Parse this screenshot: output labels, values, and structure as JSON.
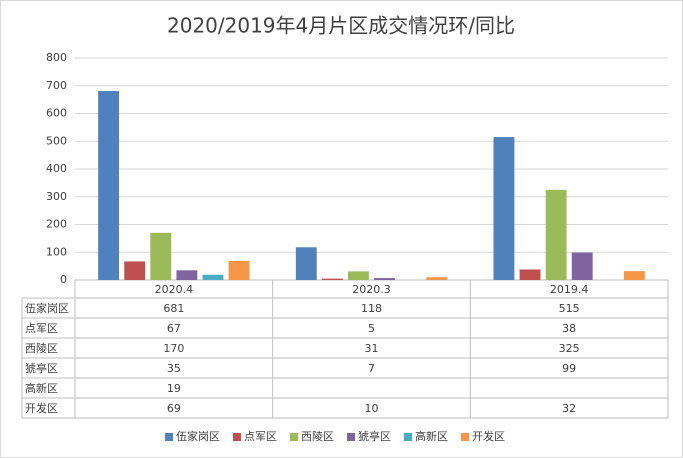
{
  "chart_data": {
    "type": "bar",
    "title": "2020/2019年4月片区成交情况环/同比",
    "categories": [
      "2020.4",
      "2020.3",
      "2019.4"
    ],
    "series": [
      {
        "name": "伍家岗区",
        "color": "#4f81bd",
        "values": [
          681,
          118,
          515
        ]
      },
      {
        "name": "点军区",
        "color": "#c0504d",
        "values": [
          67,
          5,
          38
        ]
      },
      {
        "name": "西陵区",
        "color": "#9bbb59",
        "values": [
          170,
          31,
          325
        ]
      },
      {
        "name": "猇亭区",
        "color": "#8064a2",
        "values": [
          35,
          7,
          99
        ]
      },
      {
        "name": "高新区",
        "color": "#4bacc6",
        "values": [
          19,
          null,
          null
        ]
      },
      {
        "name": "开发区",
        "color": "#f79646",
        "values": [
          69,
          10,
          32
        ]
      }
    ],
    "ylim": [
      0,
      800
    ],
    "yticks": [
      0,
      100,
      200,
      300,
      400,
      500,
      600,
      700,
      800
    ],
    "grid": true
  }
}
